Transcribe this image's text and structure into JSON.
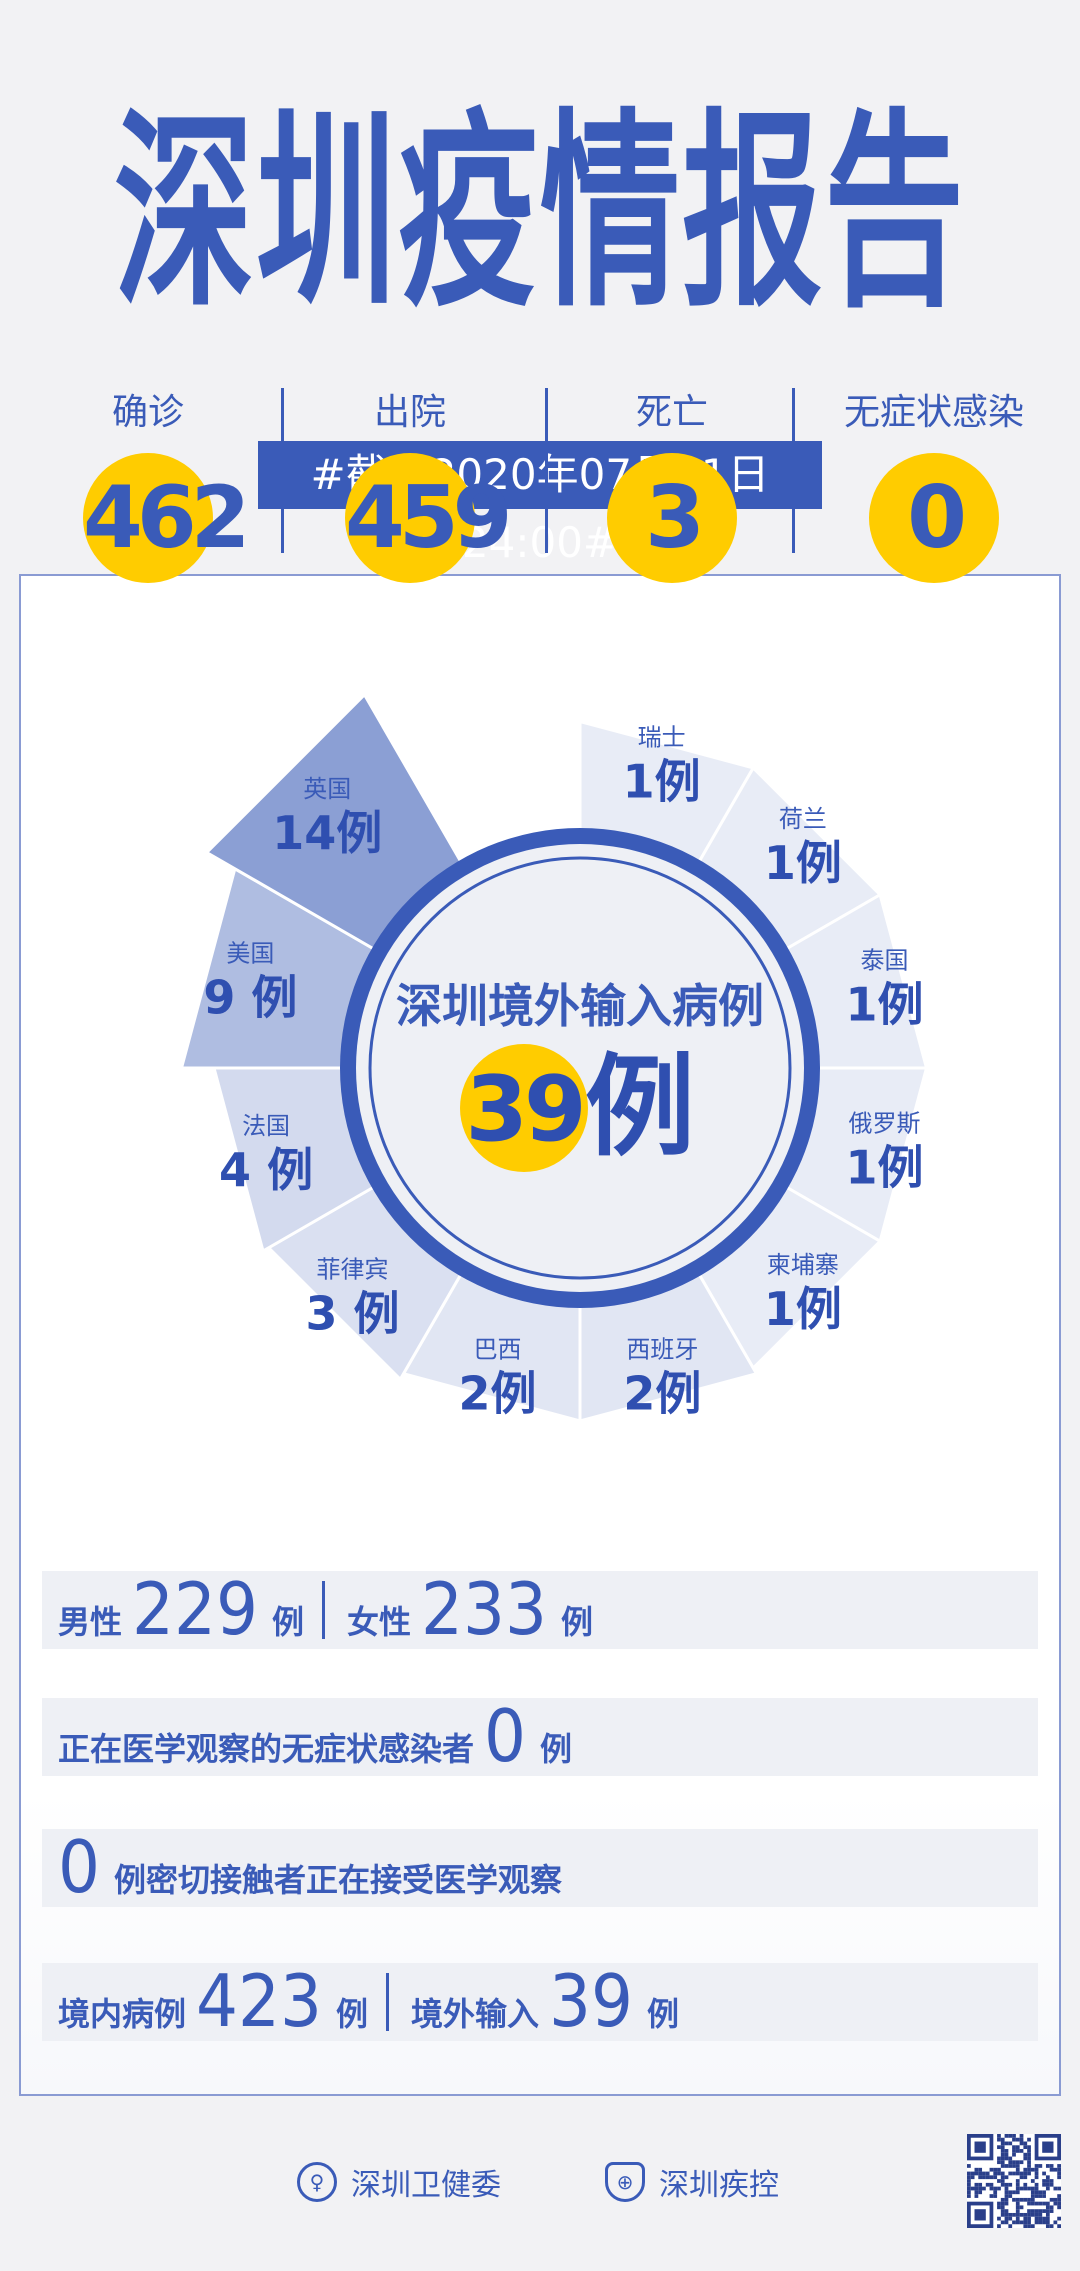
{
  "title": "深圳疫情报告",
  "date_banner": "#截至2020年07月01日24:00#",
  "stats": [
    {
      "label": "确诊",
      "value": "462"
    },
    {
      "label": "出院",
      "value": "459"
    },
    {
      "label": "死亡",
      "value": "3"
    },
    {
      "label": "无症状感染",
      "value": "0"
    }
  ],
  "chart_data": {
    "type": "pie",
    "title": "深圳境外输入病例",
    "total": 39,
    "total_label": "39",
    "unit": "例",
    "categories": [
      "瑞士",
      "荷兰",
      "泰国",
      "俄罗斯",
      "柬埔寨",
      "西班牙",
      "巴西",
      "菲律宾",
      "法国",
      "美国",
      "英国"
    ],
    "values": [
      1,
      1,
      1,
      1,
      1,
      2,
      2,
      3,
      4,
      9,
      14
    ],
    "value_labels": [
      "1例",
      "1例",
      "1例",
      "1例",
      "1例",
      "2例",
      "2例",
      "3 例",
      "4 例",
      "9 例",
      "14例"
    ]
  },
  "rows": {
    "gender": {
      "male_label": "男性",
      "male": "229",
      "female_label": "女性",
      "female": "233",
      "unit": "例"
    },
    "asymptomatic": {
      "label": "正在医学观察的无症状感染者",
      "value": "0",
      "unit": "例"
    },
    "contacts": {
      "value": "0",
      "label": "例密切接触者正在接受医学观察"
    },
    "origin": {
      "local_label": "境内病例",
      "local": "423",
      "imported_label": "境外输入",
      "imported": "39",
      "unit": "例"
    }
  },
  "footer": {
    "org1": "深圳卫健委",
    "org2": "深圳疾控"
  },
  "colors": {
    "brand": "#3a5bb8",
    "highlight": "#ffcc00",
    "background": "#f2f2f4"
  }
}
